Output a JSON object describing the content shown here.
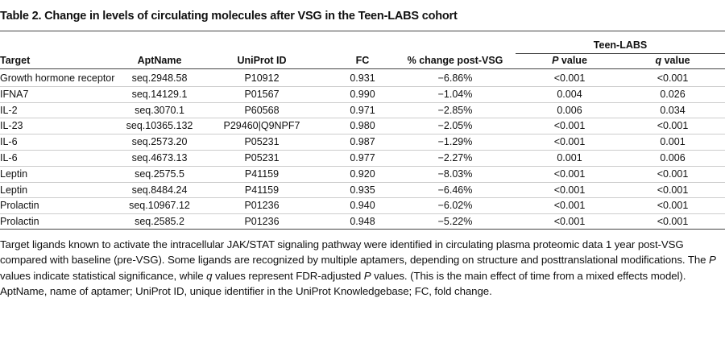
{
  "title": "Table 2. Change in levels of circulating molecules after VSG in the Teen-LABS cohort",
  "table": {
    "group_header": "Teen-LABS",
    "columns": [
      "Target",
      "AptName",
      "UniProt ID",
      "FC",
      "% change post-VSG",
      "P value",
      "q value"
    ],
    "rows": [
      [
        "Growth hormone receptor",
        "seq.2948.58",
        "P10912",
        "0.931",
        "−6.86%",
        "<0.001",
        "<0.001"
      ],
      [
        "IFNA7",
        "seq.14129.1",
        "P01567",
        "0.990",
        "−1.04%",
        "0.004",
        "0.026"
      ],
      [
        "IL-2",
        "seq.3070.1",
        "P60568",
        "0.971",
        "−2.85%",
        "0.006",
        "0.034"
      ],
      [
        "IL-23",
        "seq.10365.132",
        "P29460|Q9NPF7",
        "0.980",
        "−2.05%",
        "<0.001",
        "<0.001"
      ],
      [
        "IL-6",
        "seq.2573.20",
        "P05231",
        "0.987",
        "−1.29%",
        "<0.001",
        "0.001"
      ],
      [
        "IL-6",
        "seq.4673.13",
        "P05231",
        "0.977",
        "−2.27%",
        "0.001",
        "0.006"
      ],
      [
        "Leptin",
        "seq.2575.5",
        "P41159",
        "0.920",
        "−8.03%",
        "<0.001",
        "<0.001"
      ],
      [
        "Leptin",
        "seq.8484.24",
        "P41159",
        "0.935",
        "−6.46%",
        "<0.001",
        "<0.001"
      ],
      [
        "Prolactin",
        "seq.10967.12",
        "P01236",
        "0.940",
        "−6.02%",
        "<0.001",
        "<0.001"
      ],
      [
        "Prolactin",
        "seq.2585.2",
        "P01236",
        "0.948",
        "−5.22%",
        "<0.001",
        "<0.001"
      ]
    ]
  },
  "footnote": [
    "Target ligands known to activate the intracellular JAK/STAT signaling pathway were identified in circulating plasma proteomic data 1 year post-VSG compared with baseline (pre-VSG). Some ligands are recognized by multiple aptamers, depending on structure and posttranslational modifications. The ",
    "P",
    " values indicate statistical significance, while ",
    "q",
    " values represent FDR-adjusted ",
    "P",
    " values. (This is the main effect of time from a mixed effects model). AptName, name of aptamer; UniProt ID, unique identifier in the UniProt Knowledgebase; FC, fold change."
  ]
}
